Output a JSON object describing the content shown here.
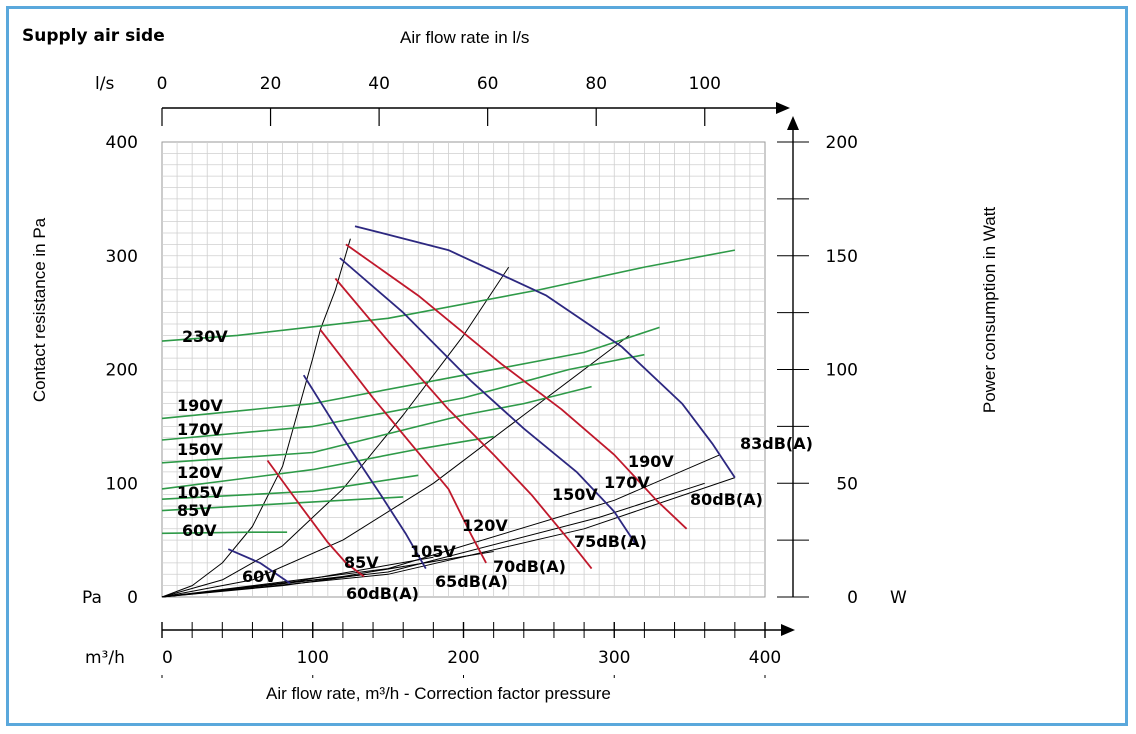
{
  "chart_data": {
    "type": "line",
    "title": "Supply air side",
    "xlabel": "Air flow rate, m³/h - Correction factor pressure",
    "ylabel": "Contact resistance in Pa",
    "x_top_label": "Air flow rate in l/s",
    "y_right_label": "Power consumption in Watt",
    "x_unit": "m³/h",
    "x_top_unit": "l/s",
    "y_unit": "Pa",
    "y_right_unit": "W",
    "xlim": [
      0,
      400
    ],
    "ylim": [
      0,
      400
    ],
    "x_top_lim": [
      0,
      111.1
    ],
    "y_right_lim": [
      0,
      200
    ],
    "x_ticks": [
      "0",
      "100",
      "200",
      "300",
      "400"
    ],
    "y_ticks": [
      "0",
      "100",
      "200",
      "300",
      "400"
    ],
    "x_top_ticks": [
      "0",
      "20",
      "40",
      "60",
      "80",
      "100"
    ],
    "y_right_ticks": [
      "0",
      "50",
      "100",
      "150",
      "200"
    ],
    "grid": true,
    "pressure_curves": [
      {
        "name": "60V",
        "points": [
          [
            44,
            42
          ],
          [
            65,
            30
          ],
          [
            85,
            12
          ]
        ]
      },
      {
        "name": "85V",
        "points": [
          [
            70,
            120
          ],
          [
            92,
            80
          ],
          [
            110,
            48
          ],
          [
            122,
            30
          ],
          [
            134,
            18
          ]
        ]
      },
      {
        "name": "105V",
        "points": [
          [
            94,
            195
          ],
          [
            120,
            140
          ],
          [
            145,
            90
          ],
          [
            162,
            55
          ],
          [
            175,
            25
          ]
        ]
      },
      {
        "name": "120V",
        "points": [
          [
            105,
            235
          ],
          [
            140,
            175
          ],
          [
            165,
            135
          ],
          [
            190,
            95
          ],
          [
            205,
            55
          ],
          [
            215,
            30
          ]
        ]
      },
      {
        "name": "150V",
        "points": [
          [
            115,
            280
          ],
          [
            150,
            225
          ],
          [
            190,
            165
          ],
          [
            220,
            125
          ],
          [
            245,
            90
          ],
          [
            270,
            50
          ],
          [
            285,
            25
          ]
        ]
      },
      {
        "name": "170V",
        "points": [
          [
            118,
            298
          ],
          [
            160,
            250
          ],
          [
            205,
            190
          ],
          [
            240,
            148
          ],
          [
            275,
            110
          ],
          [
            300,
            75
          ],
          [
            315,
            45
          ]
        ]
      },
      {
        "name": "190V",
        "points": [
          [
            122,
            310
          ],
          [
            170,
            265
          ],
          [
            225,
            205
          ],
          [
            265,
            165
          ],
          [
            300,
            125
          ],
          [
            328,
            85
          ],
          [
            348,
            60
          ]
        ]
      },
      {
        "name": "230V",
        "points": [
          [
            128,
            326
          ],
          [
            190,
            305
          ],
          [
            255,
            265
          ],
          [
            305,
            220
          ],
          [
            345,
            170
          ],
          [
            365,
            135
          ],
          [
            380,
            105
          ]
        ]
      }
    ],
    "power_curves": [
      {
        "name": "230V",
        "points": [
          [
            0,
            225
          ],
          [
            50,
            230
          ],
          [
            150,
            245
          ],
          [
            250,
            270
          ],
          [
            320,
            290
          ],
          [
            380,
            305
          ]
        ]
      },
      {
        "name": "190V",
        "points": [
          [
            0,
            157
          ],
          [
            100,
            170
          ],
          [
            200,
            195
          ],
          [
            280,
            215
          ],
          [
            330,
            237
          ]
        ]
      },
      {
        "name": "170V",
        "points": [
          [
            0,
            138
          ],
          [
            100,
            150
          ],
          [
            200,
            175
          ],
          [
            270,
            200
          ],
          [
            320,
            213
          ]
        ]
      },
      {
        "name": "150V",
        "points": [
          [
            0,
            118
          ],
          [
            100,
            127
          ],
          [
            200,
            160
          ],
          [
            240,
            170
          ],
          [
            285,
            185
          ]
        ]
      },
      {
        "name": "120V",
        "points": [
          [
            0,
            95
          ],
          [
            100,
            112
          ],
          [
            170,
            130
          ],
          [
            220,
            141
          ]
        ]
      },
      {
        "name": "105V",
        "points": [
          [
            0,
            86
          ],
          [
            100,
            93
          ],
          [
            170,
            107
          ]
        ]
      },
      {
        "name": "85V",
        "points": [
          [
            0,
            76
          ],
          [
            80,
            82
          ],
          [
            160,
            88
          ]
        ]
      },
      {
        "name": "60V",
        "points": [
          [
            0,
            56
          ],
          [
            60,
            57
          ],
          [
            83,
            57
          ]
        ]
      }
    ],
    "sound_curves": [
      {
        "name": "60dB(A)",
        "points": [
          [
            0,
            0
          ],
          [
            80,
            10
          ],
          [
            135,
            20
          ]
        ]
      },
      {
        "name": "65dB(A)",
        "points": [
          [
            0,
            0
          ],
          [
            90,
            14
          ],
          [
            180,
            35
          ]
        ]
      },
      {
        "name": "70dB(A)",
        "points": [
          [
            0,
            0
          ],
          [
            120,
            18
          ],
          [
            220,
            40
          ]
        ]
      },
      {
        "name": "75dB(A)",
        "points": [
          [
            0,
            0
          ],
          [
            150,
            20
          ],
          [
            280,
            60
          ],
          [
            380,
            105
          ]
        ]
      },
      {
        "name": "80dB(A)",
        "points": [
          [
            0,
            0
          ],
          [
            150,
            22
          ],
          [
            290,
            70
          ],
          [
            360,
            100
          ]
        ]
      },
      {
        "name": "83dB(A)",
        "points": [
          [
            0,
            0
          ],
          [
            150,
            25
          ],
          [
            300,
            85
          ],
          [
            370,
            125
          ]
        ]
      }
    ],
    "system_curves": [
      {
        "points": [
          [
            0,
            0
          ],
          [
            20,
            10
          ],
          [
            40,
            30
          ],
          [
            60,
            62
          ],
          [
            80,
            115
          ],
          [
            100,
            210
          ],
          [
            105,
            235
          ],
          [
            115,
            270
          ],
          [
            125,
            315
          ]
        ]
      },
      {
        "points": [
          [
            0,
            0
          ],
          [
            40,
            15
          ],
          [
            80,
            45
          ],
          [
            120,
            95
          ],
          [
            160,
            160
          ],
          [
            200,
            230
          ],
          [
            230,
            290
          ]
        ]
      },
      {
        "points": [
          [
            0,
            0
          ],
          [
            60,
            15
          ],
          [
            120,
            50
          ],
          [
            180,
            100
          ],
          [
            240,
            160
          ],
          [
            290,
            210
          ],
          [
            310,
            230
          ]
        ]
      }
    ],
    "colors": {
      "pressure": "#2d2880",
      "power": "#2e9a48",
      "sound": "#000000",
      "system": "#000000",
      "red_curves": "#c0192c",
      "frame": "#5aa8dc"
    }
  }
}
